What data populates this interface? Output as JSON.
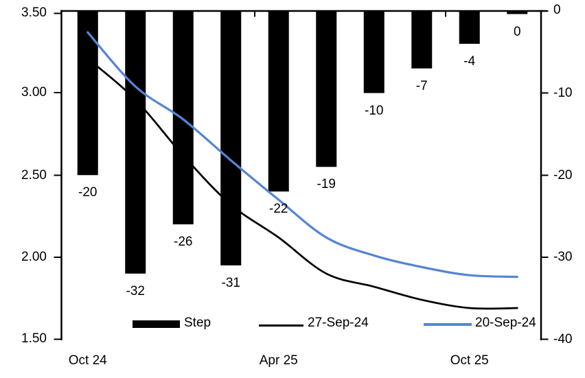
{
  "chart_data": {
    "type": "combo",
    "title": "",
    "num_categories": 10,
    "background_color": "#FFFFFF",
    "x_axis": {
      "tick_labels": [
        {
          "label": "Oct 24",
          "category_index": 0
        },
        {
          "label": "Apr 25",
          "category_index": 4
        },
        {
          "label": "Oct 25",
          "category_index": 8
        }
      ]
    },
    "left_axis": {
      "max": 3.5,
      "min": 1.5,
      "tick_labels": [
        "3.50",
        "3.00",
        "2.50",
        "2.00",
        "1.50"
      ]
    },
    "right_axis": {
      "max": 0,
      "min": -40,
      "tick_labels": [
        "0",
        "-10",
        "-20",
        "-30",
        "-40"
      ]
    },
    "bar_series": {
      "name": "Step",
      "axis": "right",
      "color": "#000000",
      "values": [
        -20,
        -32,
        -26,
        -31,
        -22,
        -19,
        -10,
        -7,
        -4,
        0
      ],
      "labels": [
        "-20",
        "-32",
        "-26",
        "-31",
        "-22",
        "-19",
        "-10",
        "-7",
        "-4",
        "0"
      ]
    },
    "line_series": [
      {
        "name": "27-Sep-24",
        "axis": "left",
        "color": "#000000",
        "stroke_width": 2.75,
        "values": [
          3.21,
          2.96,
          2.62,
          2.32,
          2.12,
          1.9,
          1.82,
          1.74,
          1.69,
          1.69
        ]
      },
      {
        "name": "20-Sep-24",
        "axis": "left",
        "color": "#5585D3",
        "stroke_width": 3.25,
        "values": [
          3.37,
          3.04,
          2.84,
          2.59,
          2.35,
          2.12,
          2.01,
          1.94,
          1.89,
          1.88
        ]
      }
    ],
    "legend": [
      {
        "label": "Step",
        "type": "bar",
        "color": "#000000"
      },
      {
        "label": "27-Sep-24",
        "type": "line",
        "color": "#000000"
      },
      {
        "label": "20-Sep-24",
        "type": "line",
        "color": "#5585D3"
      }
    ],
    "grid": "off",
    "legend_position": "bottom"
  }
}
